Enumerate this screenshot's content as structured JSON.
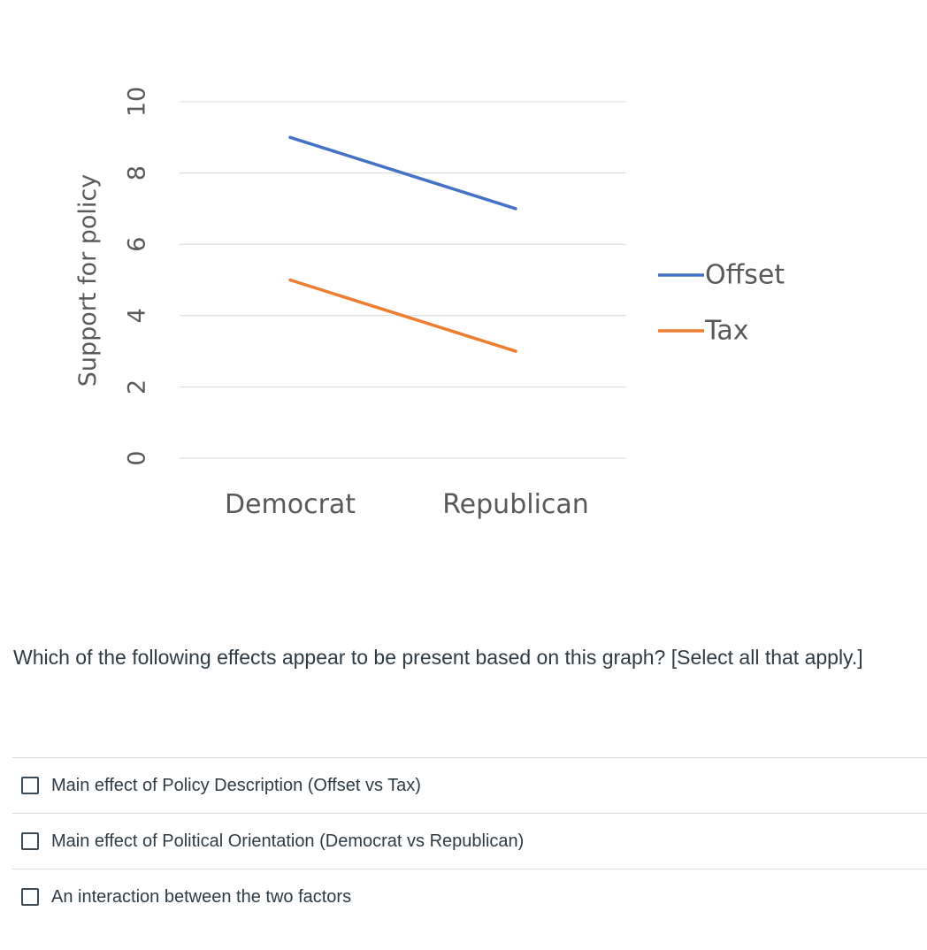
{
  "chart_data": {
    "type": "line",
    "categories": [
      "Democrat",
      "Republican"
    ],
    "series": [
      {
        "name": "Offset",
        "values": [
          9,
          7
        ],
        "color": "#4472c4"
      },
      {
        "name": "Tax",
        "values": [
          5,
          3
        ],
        "color": "#ed7d31"
      }
    ],
    "ylabel": "Support for policy",
    "xlabel": "",
    "ylim": [
      0,
      10
    ],
    "yticks": [
      "0",
      "2",
      "4",
      "6",
      "8",
      "10"
    ],
    "grid": true,
    "legend": "right"
  },
  "question": {
    "text": "Which of the following effects appear to be present based on this graph? [Select all that apply.]"
  },
  "answers": [
    {
      "label": "Main effect of Policy Description (Offset vs Tax)"
    },
    {
      "label": "Main effect of Political Orientation (Democrat vs Republican)"
    },
    {
      "label": "An interaction between the two factors"
    }
  ],
  "colors": {
    "gridline": "#d9d9d9",
    "text": "#595959",
    "checkbox_border": "#3b4a54"
  }
}
